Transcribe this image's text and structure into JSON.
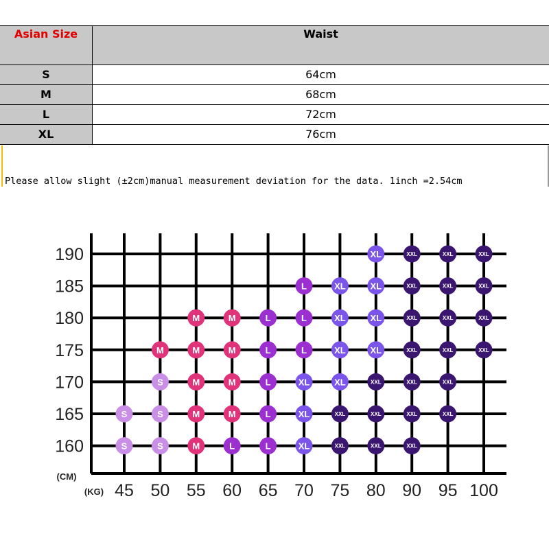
{
  "table": {
    "header": [
      "Asian Size",
      "Waist"
    ],
    "rows": [
      [
        "S",
        "64cm"
      ],
      [
        "M",
        "68cm"
      ],
      [
        "L",
        "72cm"
      ],
      [
        "XL",
        "76cm"
      ]
    ],
    "note": "Please allow slight (±2cm)manual measurement deviation for the data. 1inch =2.54cm"
  },
  "grid": {
    "unit_y": "(CM)",
    "unit_x": "(KG)",
    "heights": [
      190,
      185,
      180,
      175,
      170,
      165,
      160
    ],
    "weights": [
      45,
      50,
      55,
      60,
      65,
      70,
      75,
      80,
      90,
      95,
      100
    ],
    "rows": [
      [
        null,
        null,
        null,
        null,
        null,
        null,
        null,
        "XL",
        "XXL",
        "XXL",
        "XXL"
      ],
      [
        null,
        null,
        null,
        null,
        null,
        "L",
        "XL",
        "XL",
        "XXL",
        "XXL",
        "XXL"
      ],
      [
        null,
        null,
        "M",
        "M",
        "L",
        "L",
        "XL",
        "XL",
        "XXL",
        "XXL",
        "XXL"
      ],
      [
        null,
        "M",
        "M",
        "M",
        "L",
        "L",
        "XL",
        "XL",
        "XXL",
        "XXL",
        "XXL"
      ],
      [
        null,
        "S",
        "M",
        "M",
        "L",
        "XL",
        "XL",
        "XXL",
        "XXL",
        "XXL",
        null
      ],
      [
        "S",
        "S",
        "M",
        "M",
        "L",
        "XL",
        "XXL",
        "XXL",
        "XXL",
        "XXL",
        null
      ],
      [
        "S",
        "S",
        "M",
        "L",
        "L",
        "XL",
        "XXL",
        "XXL",
        "XXL",
        null,
        null
      ]
    ],
    "size_colors": {
      "S": "#c98ee6",
      "M": "#e0337a",
      "L": "#9b2fd0",
      "XL": "#7b55ea",
      "XXL": "#3a1670"
    }
  }
}
